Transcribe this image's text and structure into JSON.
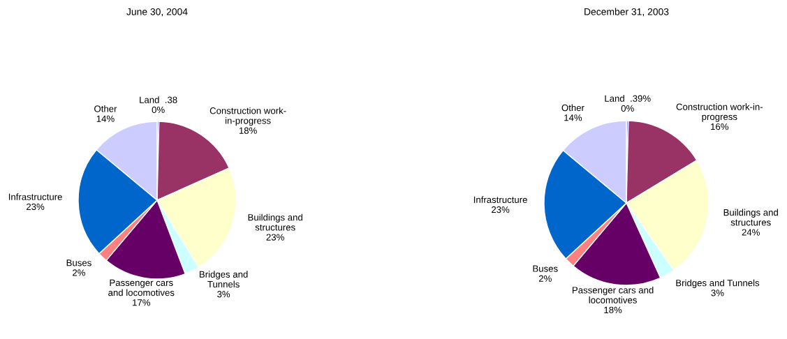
{
  "chart_data": [
    {
      "type": "pie",
      "title": "June 30, 2004",
      "categories": [
        "Land  .38",
        "Construction work-\nin-progress",
        "Buildings and\nstructures",
        "Bridges and\nTunnels",
        "Passenger cars\nand locomotives",
        "Buses",
        "Infrastructure",
        "Other"
      ],
      "values": [
        0.38,
        18,
        23,
        3,
        17,
        2,
        23,
        14
      ],
      "value_labels": [
        "0%",
        "18%",
        "23%",
        "3%",
        "17%",
        "2%",
        "23%",
        "14%"
      ],
      "colors": [
        "#9999ff",
        "#993366",
        "#ffffcc",
        "#ccffff",
        "#660066",
        "#ff8080",
        "#0066cc",
        "#ccccff"
      ]
    },
    {
      "type": "pie",
      "title": "December 31, 2003",
      "categories": [
        "Land  .39%",
        "Construction work-in-\nprogress",
        "Buildings and\nstructures",
        "Bridges and Tunnels",
        "Passenger cars and\nlocomotives",
        "Buses",
        "Infrastructure",
        "Other"
      ],
      "values": [
        0.39,
        16,
        24,
        3,
        18,
        2,
        23,
        14
      ],
      "value_labels": [
        "0%",
        "16%",
        "24%",
        "3%",
        "18%",
        "2%",
        "23%",
        "14%"
      ],
      "colors": [
        "#9999ff",
        "#993366",
        "#ffffcc",
        "#ccffff",
        "#660066",
        "#ff8080",
        "#0066cc",
        "#ccccff"
      ]
    }
  ]
}
